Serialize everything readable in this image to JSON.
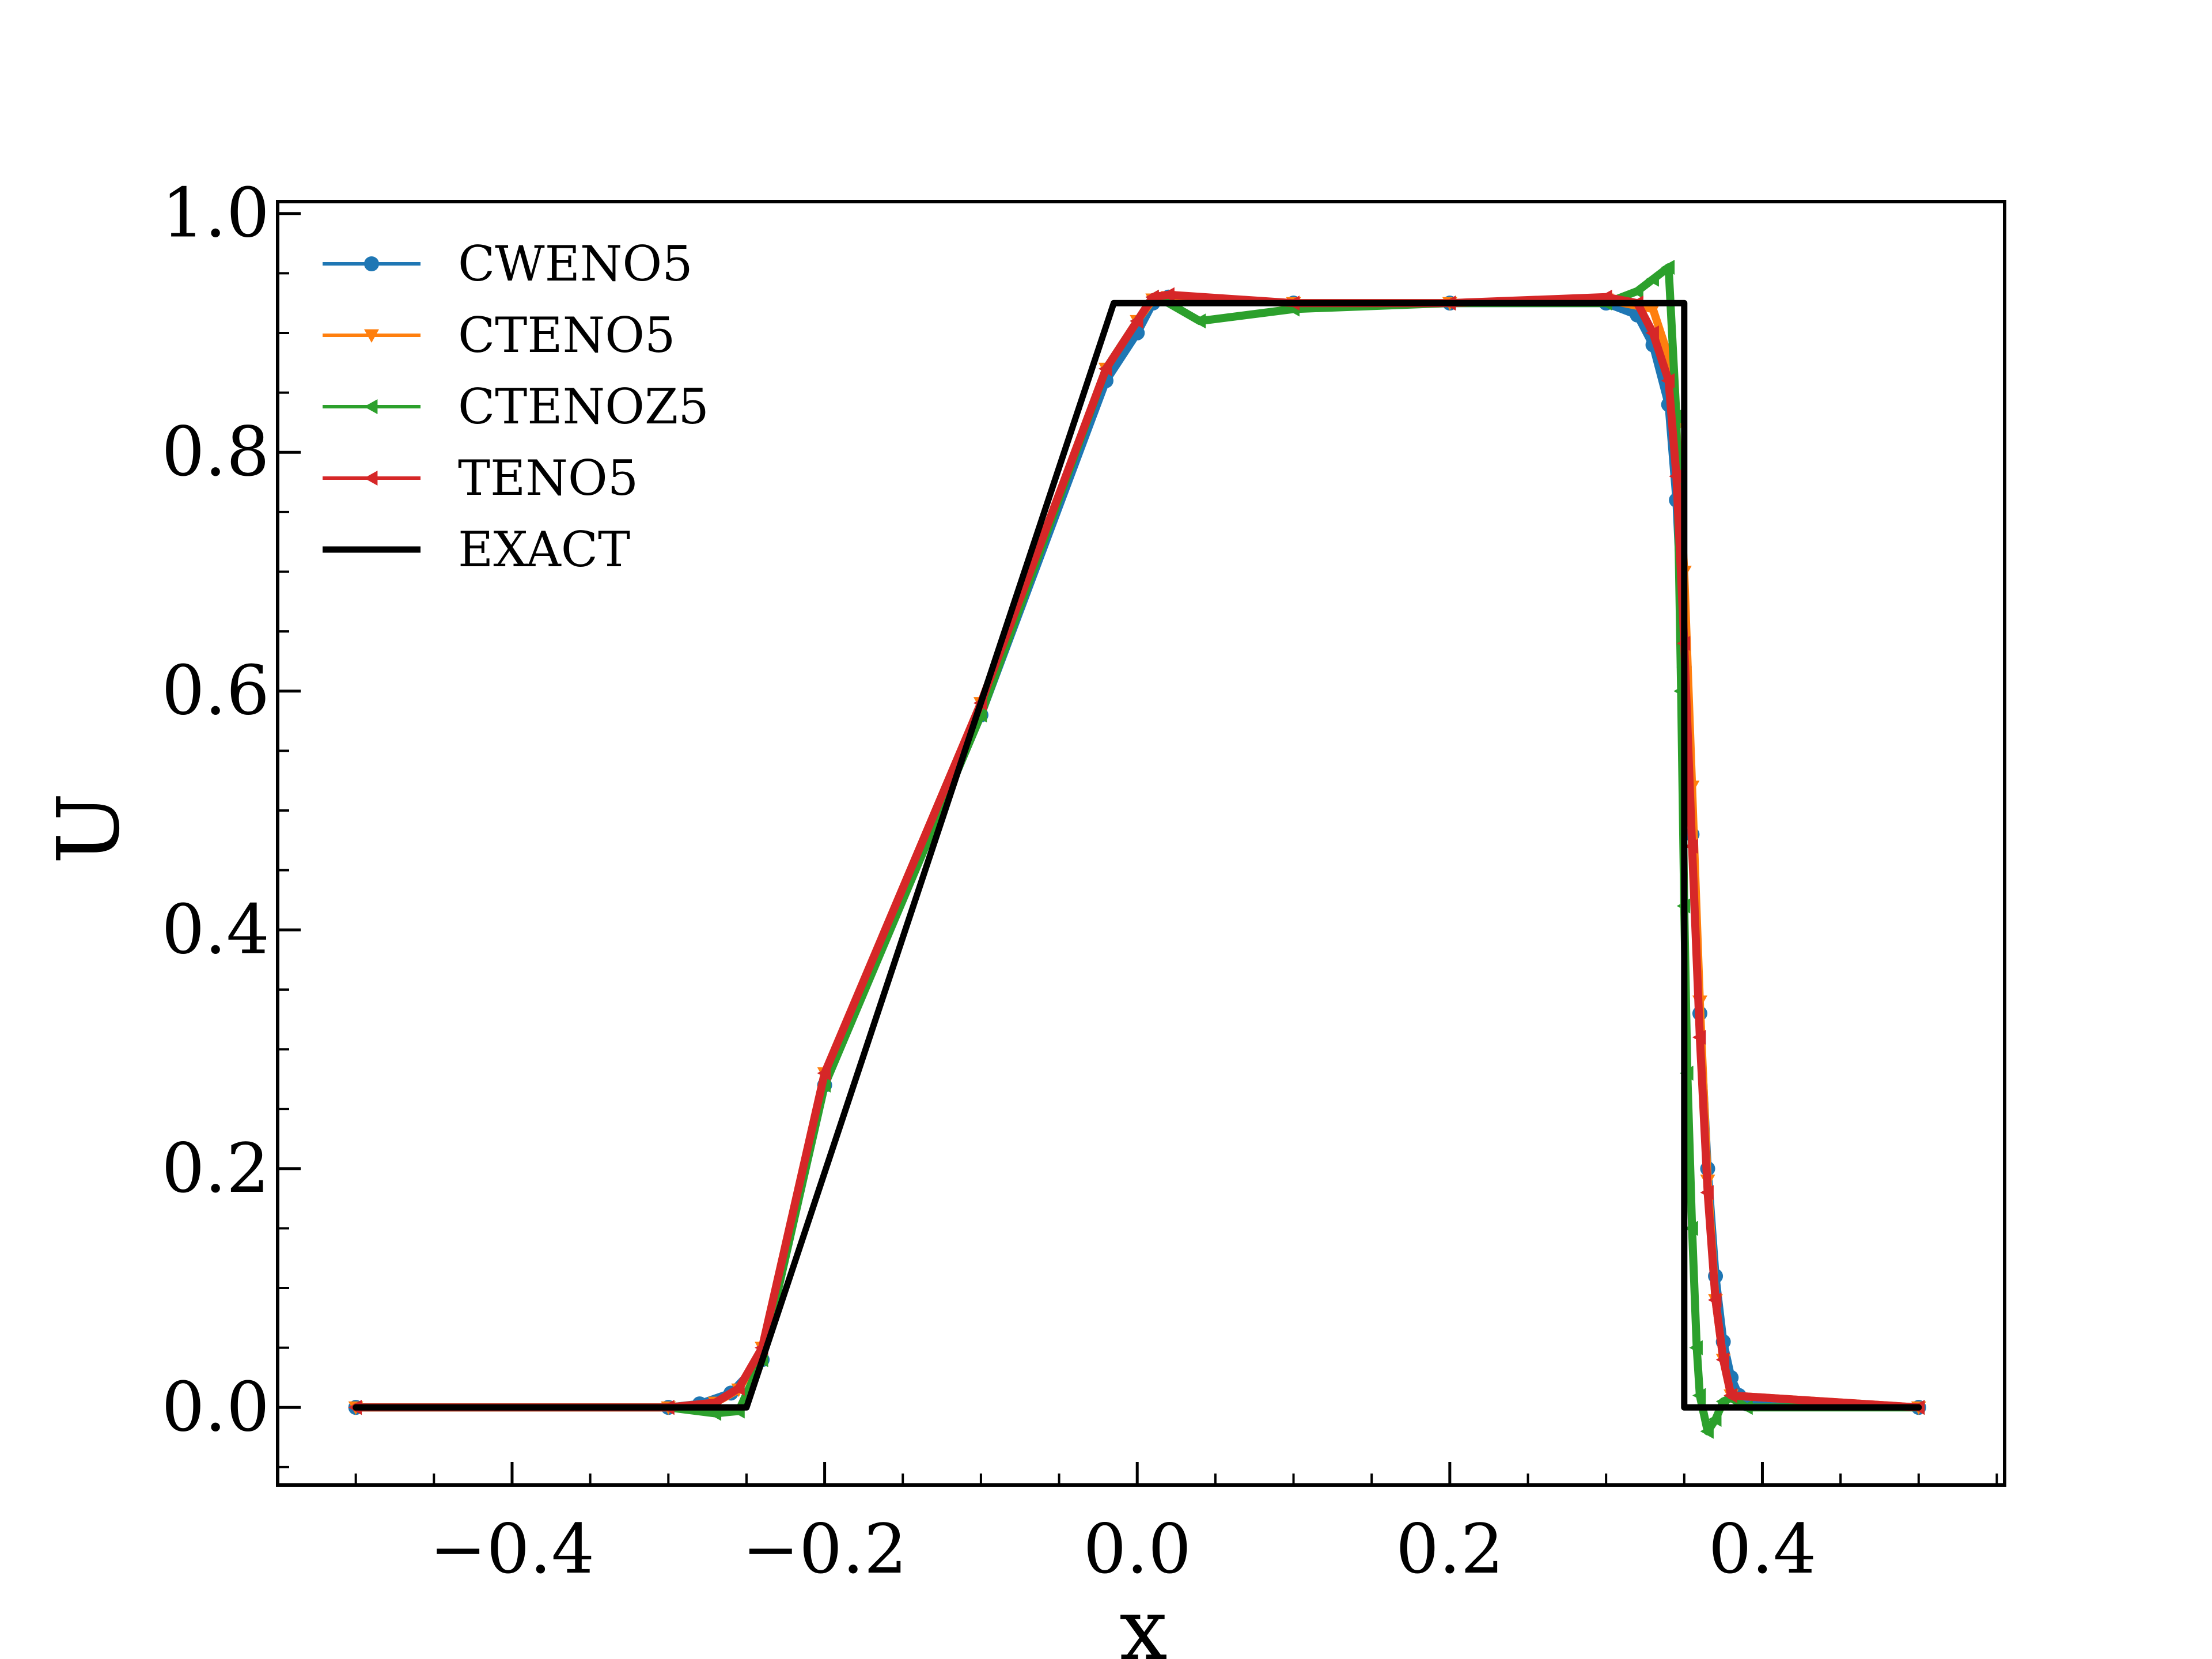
{
  "chart_data": {
    "type": "line",
    "title": "",
    "xlabel": "x",
    "ylabel": "U",
    "xlim": [
      -0.55,
      0.555
    ],
    "ylim": [
      -0.065,
      1.01
    ],
    "x_ticks": [
      -0.4,
      -0.2,
      0.0,
      0.2,
      0.4
    ],
    "x_tick_labels": [
      "−0.4",
      "−0.2",
      "0.0",
      "0.2",
      "0.4"
    ],
    "y_ticks": [
      0.0,
      0.2,
      0.4,
      0.6,
      0.8,
      1.0
    ],
    "y_tick_labels": [
      "0.0",
      "0.2",
      "0.4",
      "0.6",
      "0.8",
      "1.0"
    ],
    "grid": false,
    "legend_position": "top-left",
    "series": [
      {
        "name": "CWENO5",
        "color": "#1f77b4",
        "marker": "circle",
        "x": [
          -0.5,
          -0.3,
          -0.28,
          -0.26,
          -0.24,
          -0.2,
          -0.1,
          -0.02,
          0.0,
          0.01,
          0.02,
          0.1,
          0.2,
          0.3,
          0.32,
          0.33,
          0.34,
          0.345,
          0.35,
          0.355,
          0.36,
          0.365,
          0.37,
          0.375,
          0.38,
          0.385,
          0.39,
          0.5
        ],
        "y": [
          0.0,
          0.0,
          0.003,
          0.012,
          0.04,
          0.27,
          0.58,
          0.86,
          0.9,
          0.925,
          0.93,
          0.925,
          0.925,
          0.925,
          0.915,
          0.89,
          0.84,
          0.76,
          0.62,
          0.48,
          0.33,
          0.2,
          0.11,
          0.055,
          0.025,
          0.01,
          0.003,
          0.0
        ]
      },
      {
        "name": "CTENO5",
        "color": "#ff7f0e",
        "marker": "triangle-down",
        "x": [
          -0.5,
          -0.3,
          -0.27,
          -0.255,
          -0.24,
          -0.2,
          -0.1,
          -0.02,
          0.0,
          0.01,
          0.02,
          0.1,
          0.2,
          0.3,
          0.33,
          0.34,
          0.345,
          0.35,
          0.355,
          0.36,
          0.365,
          0.37,
          0.375,
          0.38,
          0.5
        ],
        "y": [
          0.0,
          0.0,
          0.004,
          0.015,
          0.05,
          0.28,
          0.59,
          0.87,
          0.91,
          0.928,
          0.93,
          0.925,
          0.925,
          0.928,
          0.92,
          0.88,
          0.82,
          0.7,
          0.52,
          0.34,
          0.19,
          0.09,
          0.04,
          0.01,
          0.0
        ]
      },
      {
        "name": "CTENOZ5",
        "color": "#2ca02c",
        "marker": "triangle-left",
        "x": [
          -0.5,
          -0.3,
          -0.27,
          -0.255,
          -0.24,
          -0.2,
          -0.1,
          -0.02,
          0.0,
          0.01,
          0.02,
          0.04,
          0.1,
          0.2,
          0.3,
          0.32,
          0.33,
          0.34,
          0.345,
          0.348,
          0.35,
          0.352,
          0.355,
          0.358,
          0.36,
          0.365,
          0.37,
          0.375,
          0.38,
          0.39,
          0.5
        ],
        "y": [
          0.0,
          0.0,
          -0.005,
          -0.003,
          0.04,
          0.27,
          0.58,
          0.87,
          0.91,
          0.93,
          0.925,
          0.91,
          0.92,
          0.925,
          0.925,
          0.935,
          0.945,
          0.955,
          0.83,
          0.6,
          0.42,
          0.28,
          0.15,
          0.05,
          0.01,
          -0.02,
          -0.01,
          0.005,
          0.008,
          0.0,
          0.0
        ]
      },
      {
        "name": "TENO5",
        "color": "#d62728",
        "marker": "triangle-left",
        "x": [
          -0.5,
          -0.3,
          -0.27,
          -0.255,
          -0.24,
          -0.2,
          -0.1,
          -0.02,
          0.0,
          0.01,
          0.02,
          0.1,
          0.2,
          0.3,
          0.32,
          0.33,
          0.34,
          0.345,
          0.35,
          0.355,
          0.36,
          0.365,
          0.37,
          0.375,
          0.38,
          0.5
        ],
        "y": [
          0.0,
          0.0,
          0.004,
          0.016,
          0.05,
          0.28,
          0.59,
          0.87,
          0.91,
          0.93,
          0.932,
          0.925,
          0.925,
          0.93,
          0.925,
          0.9,
          0.86,
          0.78,
          0.64,
          0.47,
          0.31,
          0.18,
          0.09,
          0.04,
          0.01,
          0.0
        ]
      },
      {
        "name": "EXACT",
        "color": "#000000",
        "marker": "none",
        "x": [
          -0.5,
          -0.25,
          -0.015,
          0.35,
          0.35,
          0.5
        ],
        "y": [
          0.0,
          0.0,
          0.925,
          0.925,
          0.0,
          0.0
        ]
      }
    ]
  }
}
